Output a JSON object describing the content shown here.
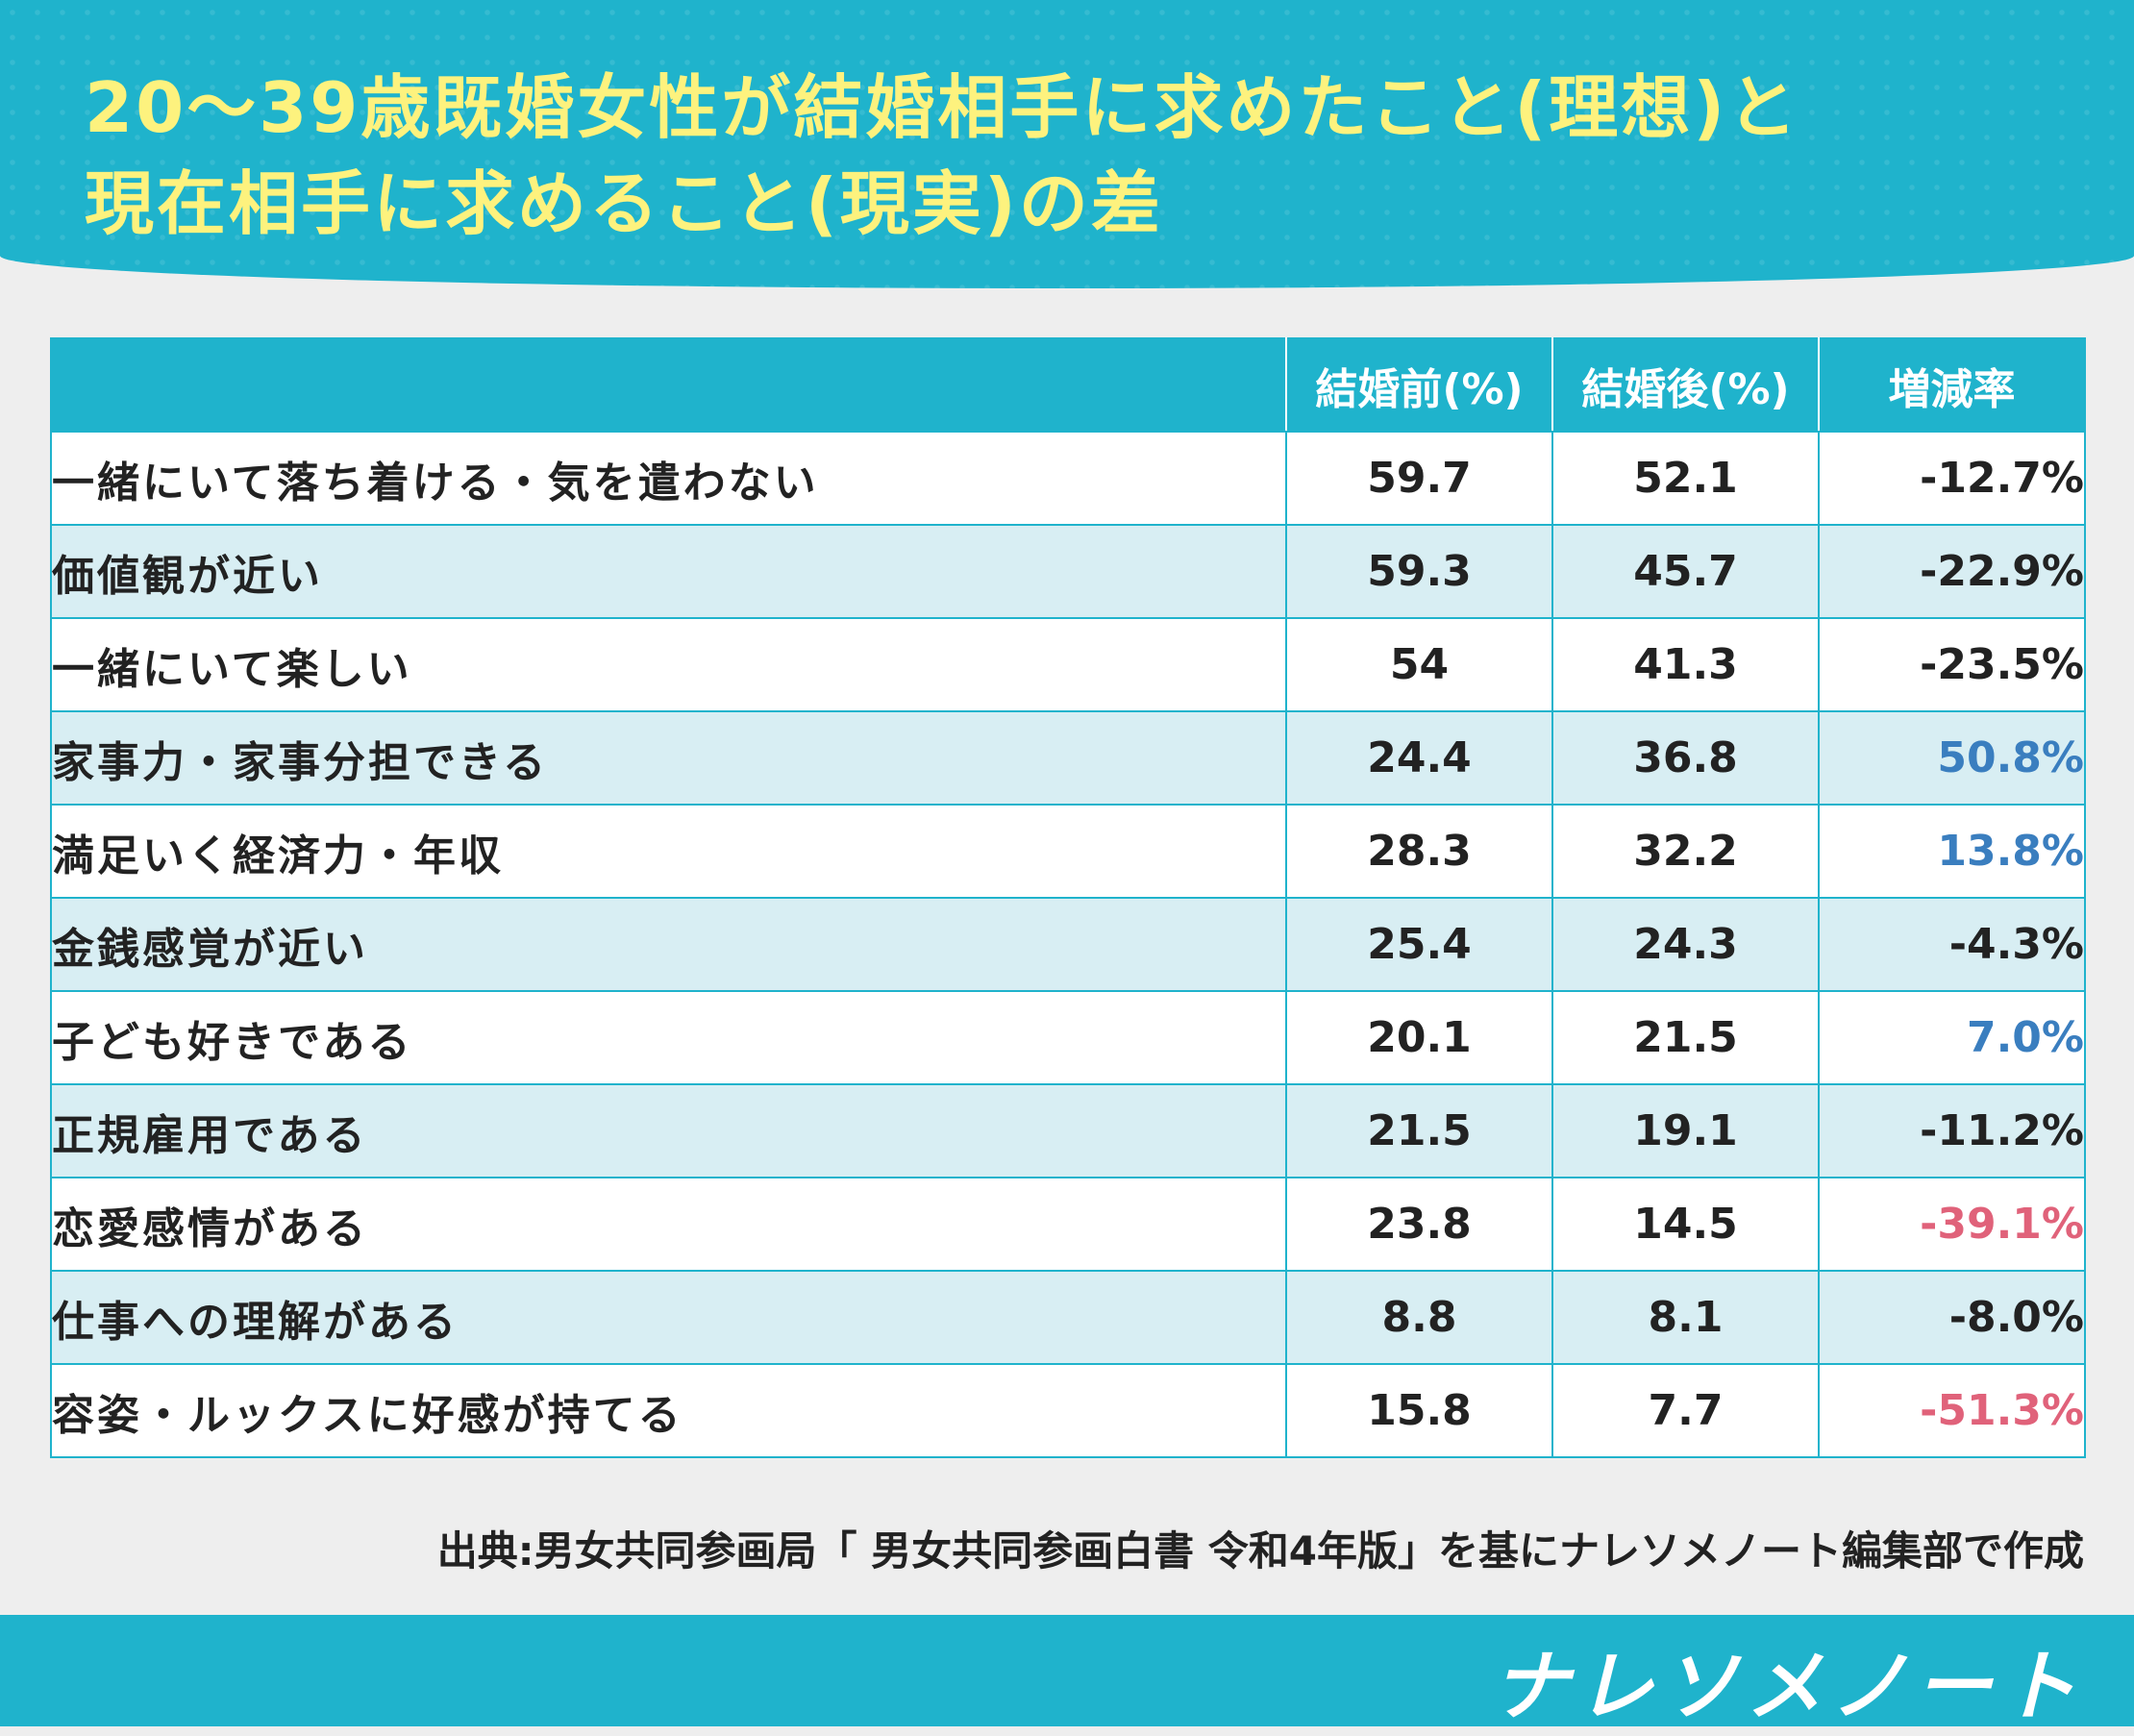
{
  "title": {
    "line1": "20〜39歳既婚女性が結婚相手に求めたこと(理想)と",
    "line2": "現在相手に求めること(現実)の差"
  },
  "chart_data": {
    "type": "table",
    "columns": [
      "",
      "結婚前(%)",
      "結婚後(%)",
      "増減率"
    ],
    "rows": [
      {
        "label": "一緒にいて落ち着ける・気を遣わない",
        "before": "59.7",
        "after": "52.1",
        "rate": "-12.7%",
        "tone": "neg"
      },
      {
        "label": "価値観が近い",
        "before": "59.3",
        "after": "45.7",
        "rate": "-22.9%",
        "tone": "neg"
      },
      {
        "label": "一緒にいて楽しい",
        "before": "54",
        "after": "41.3",
        "rate": "-23.5%",
        "tone": "neg"
      },
      {
        "label": "家事力・家事分担できる",
        "before": "24.4",
        "after": "36.8",
        "rate": "50.8%",
        "tone": "pos"
      },
      {
        "label": "満足いく経済力・年収",
        "before": "28.3",
        "after": "32.2",
        "rate": "13.8%",
        "tone": "pos"
      },
      {
        "label": "金銭感覚が近い",
        "before": "25.4",
        "after": "24.3",
        "rate": "-4.3%",
        "tone": "neg"
      },
      {
        "label": "子ども好きである",
        "before": "20.1",
        "after": "21.5",
        "rate": "7.0%",
        "tone": "pos"
      },
      {
        "label": "正規雇用である",
        "before": "21.5",
        "after": "19.1",
        "rate": "-11.2%",
        "tone": "neg"
      },
      {
        "label": "恋愛感情がある",
        "before": "23.8",
        "after": "14.5",
        "rate": "-39.1%",
        "tone": "big"
      },
      {
        "label": "仕事への理解がある",
        "before": "8.8",
        "after": "8.1",
        "rate": "-8.0%",
        "tone": "neg"
      },
      {
        "label": "容姿・ルックスに好感が持てる",
        "before": "15.8",
        "after": "7.7",
        "rate": "-51.3%",
        "tone": "big"
      }
    ]
  },
  "source": "出典:男女共同参画局「 男女共同参画白書 令和4年版」を基にナレソメノート編集部で作成",
  "logo": "ナレソメノート",
  "colors": {
    "header_bg": "#1fb3cc",
    "title_text": "#fdf27e",
    "row_alt": "#d8eef3",
    "positive_rate": "#3a7ebf",
    "large_negative_rate": "#e0627a"
  }
}
